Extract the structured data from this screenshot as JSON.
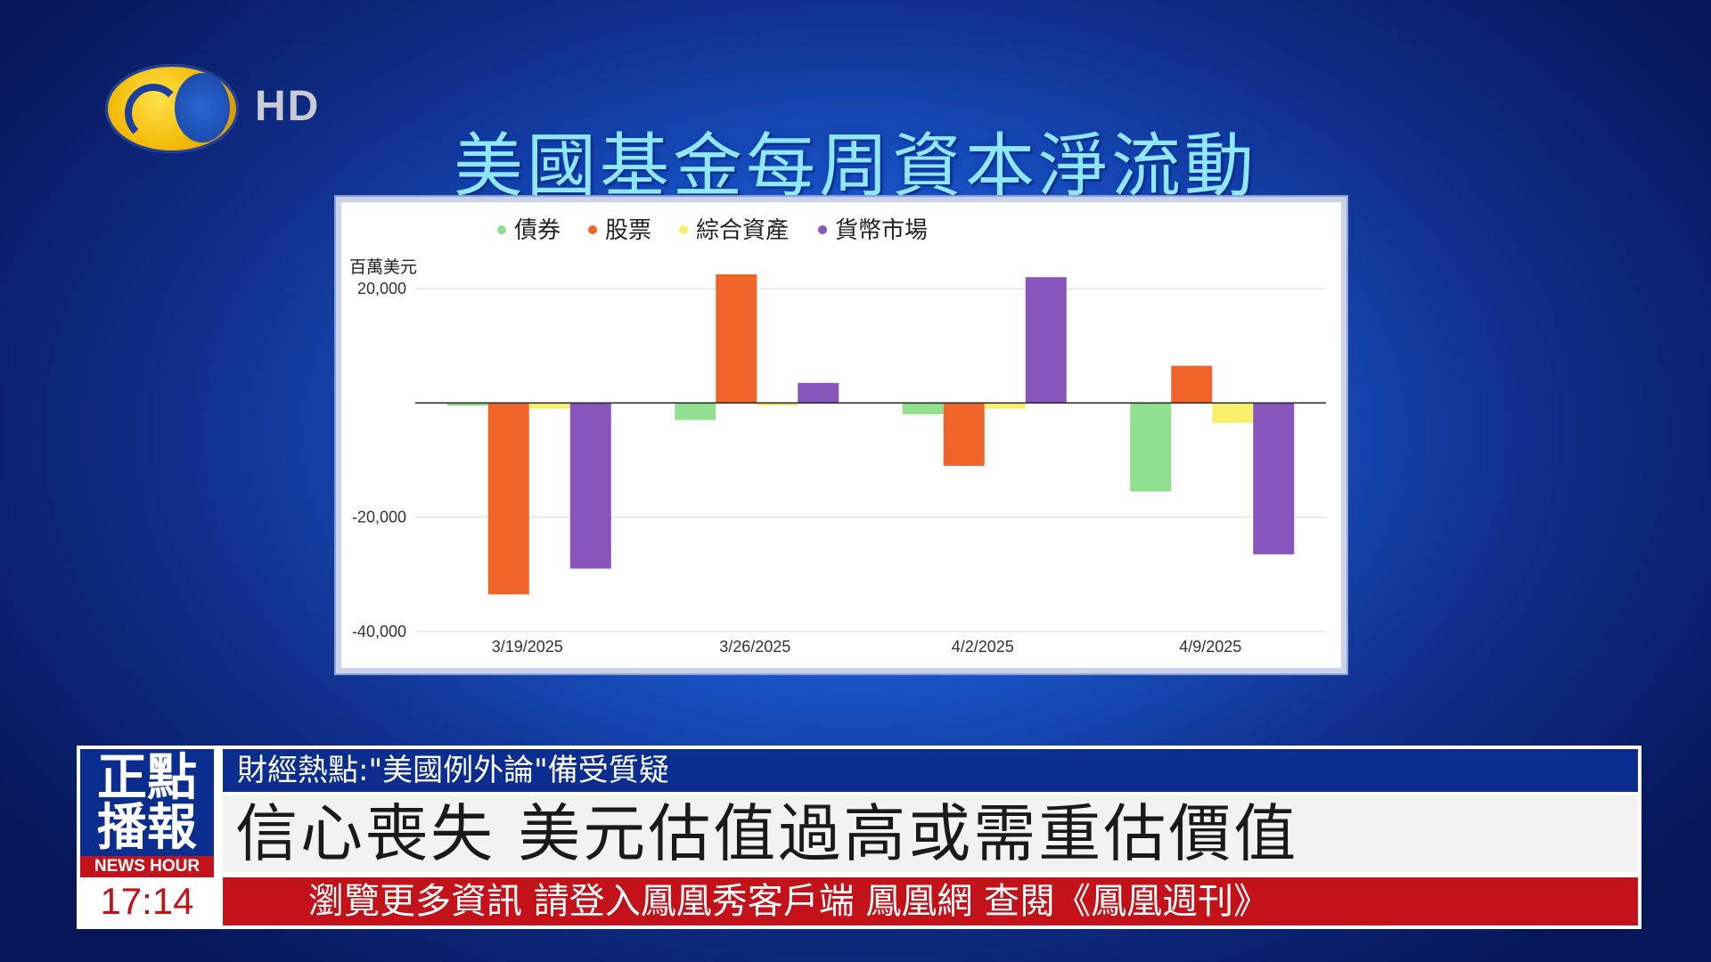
{
  "channel": {
    "hd_label": "HD"
  },
  "page": {
    "title": "美國基金每周資本淨流動"
  },
  "chart_data": {
    "type": "bar",
    "title": "",
    "ylabel": "百萬美元",
    "categories": [
      "3/19/2025",
      "3/26/2025",
      "4/2/2025",
      "4/9/2025"
    ],
    "series": [
      {
        "name": "債券",
        "color": "#90e090",
        "values": [
          -500,
          -3000,
          -2000,
          -15500
        ]
      },
      {
        "name": "股票",
        "color": "#f0642a",
        "values": [
          -33500,
          22500,
          -11000,
          6500
        ]
      },
      {
        "name": "綜合資產",
        "color": "#f7f06a",
        "values": [
          -1000,
          -500,
          -1000,
          -3500
        ]
      },
      {
        "name": "貨幣市場",
        "color": "#8755bb",
        "values": [
          -29000,
          3500,
          22000,
          -26500
        ]
      }
    ],
    "ylim": [
      -40000,
      20000
    ],
    "yticks": [
      20000,
      -20000,
      -40000
    ],
    "ytick_labels": [
      "20,000",
      "-20,000",
      "-40,000"
    ],
    "grid": true,
    "legend": "top-left"
  },
  "program": {
    "name_line1": "正點",
    "name_line2": "播報",
    "sub": "NEWS HOUR"
  },
  "time": "17:14",
  "topic": "財經熱點:\"美國例外論\"備受質疑",
  "headline": "信心喪失 美元估值過高或需重估價值",
  "scroller": "瀏覽更多資訊  請登入鳳凰秀客戶端  鳳凰網  查閱《鳳凰週刊》"
}
